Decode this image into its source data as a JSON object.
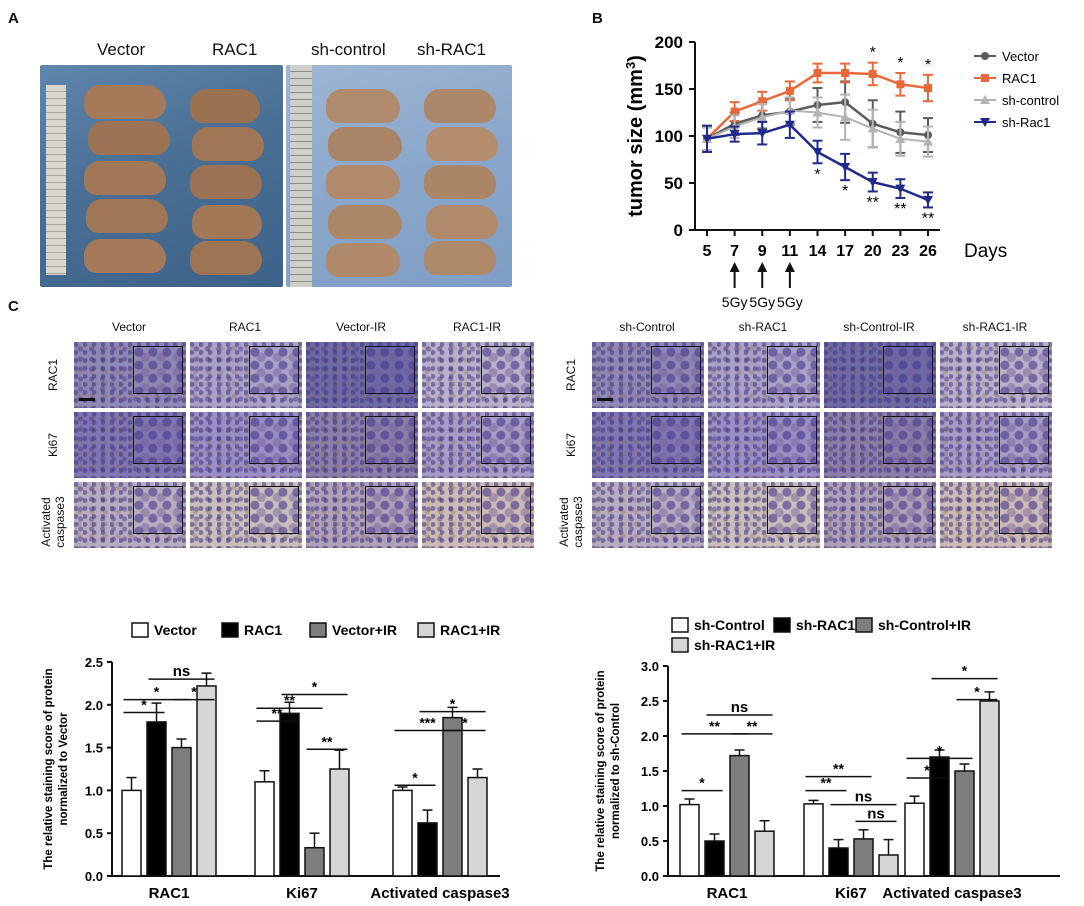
{
  "panels": {
    "a": "A",
    "b": "B",
    "c": "C"
  },
  "panel_a": {
    "group_labels": [
      "Vector",
      "RAC1",
      "sh-control",
      "sh-RAC1"
    ]
  },
  "panel_c": {
    "left_columns": [
      "Vector",
      "RAC1",
      "Vector-IR",
      "RAC1-IR"
    ],
    "right_columns": [
      "sh-Control",
      "sh-RAC1",
      "sh-Control-IR",
      "sh-RAC1-IR"
    ],
    "rows": [
      "RAC1",
      "Ki67",
      "Activated caspase3"
    ],
    "row_line1": [
      "RAC1",
      "Ki67",
      "Activated"
    ],
    "row_line2": [
      "",
      "",
      "caspase3"
    ]
  },
  "colors": {
    "vector": "#5b5b5b",
    "rac1": "#e8683a",
    "sh_control": "#b3b3b3",
    "sh_rac1": "#1f2a8c",
    "bar_white": "#ffffff",
    "bar_black": "#000000",
    "bar_dark": "#7d7d7d",
    "bar_light": "#d6d6d6"
  },
  "chart_data": [
    {
      "id": "tumor-growth",
      "type": "line",
      "ylabel": "tumor size (mm3)",
      "xlabel": "Days",
      "x": [
        5,
        7,
        9,
        11,
        14,
        17,
        20,
        23,
        26
      ],
      "ylim": [
        0,
        200
      ],
      "yticks": [
        0,
        50,
        100,
        150,
        200
      ],
      "series": [
        {
          "name": "Vector",
          "marker": "circle",
          "values": [
            97,
            113,
            122,
            126,
            133,
            136,
            113,
            104,
            101
          ],
          "errors": [
            12,
            12,
            14,
            14,
            18,
            22,
            25,
            22,
            18
          ]
        },
        {
          "name": "RAC1",
          "marker": "square",
          "values": [
            97,
            126,
            137,
            148,
            167,
            167,
            166,
            155,
            151
          ],
          "errors": [
            12,
            10,
            10,
            10,
            10,
            10,
            12,
            12,
            14
          ]
        },
        {
          "name": "sh-control",
          "marker": "triangle-up",
          "values": [
            97,
            110,
            120,
            127,
            125,
            120,
            108,
            97,
            94
          ],
          "errors": [
            12,
            12,
            14,
            14,
            16,
            24,
            20,
            18,
            16
          ]
        },
        {
          "name": "sh-Rac1",
          "marker": "triangle-down",
          "values": [
            97,
            102,
            103,
            112,
            83,
            67,
            51,
            44,
            32
          ],
          "errors": [
            14,
            8,
            12,
            14,
            12,
            14,
            10,
            10,
            8
          ]
        }
      ],
      "annotations": [
        {
          "day": 20,
          "text": "*",
          "at": "above"
        },
        {
          "day": 23,
          "text": "*",
          "at": "above"
        },
        {
          "day": 26,
          "text": "*",
          "at": "above"
        },
        {
          "day": 14,
          "text": "*",
          "at": "below"
        },
        {
          "day": 17,
          "text": "*",
          "at": "below"
        },
        {
          "day": 20,
          "text": "**",
          "at": "below"
        },
        {
          "day": 23,
          "text": "**",
          "at": "below"
        },
        {
          "day": 26,
          "text": "**",
          "at": "below"
        }
      ],
      "radiation": [
        {
          "day": 7,
          "label": "5Gy"
        },
        {
          "day": 9,
          "label": "5Gy"
        },
        {
          "day": 11,
          "label": "5Gy"
        }
      ]
    },
    {
      "id": "staining-left",
      "type": "bar",
      "ylabel_line1": "The relative staining score of protein",
      "ylabel_line2": "normalized to Vector",
      "categories": [
        "RAC1",
        "Ki67",
        "Activated caspase3"
      ],
      "ylim": [
        0,
        2.5
      ],
      "yticks": [
        "0.0",
        "0.5",
        "1.0",
        "1.5",
        "2.0",
        "2.5"
      ],
      "series": [
        {
          "name": "Vector",
          "values": [
            1.0,
            1.1,
            1.0
          ],
          "errors": [
            0.15,
            0.13,
            0.04
          ]
        },
        {
          "name": "RAC1",
          "values": [
            1.8,
            1.9,
            0.62
          ],
          "errors": [
            0.22,
            0.13,
            0.15
          ]
        },
        {
          "name": "Vector+IR",
          "values": [
            1.5,
            0.33,
            1.85
          ],
          "errors": [
            0.1,
            0.17,
            0.12
          ]
        },
        {
          "name": "RAC1+IR",
          "values": [
            2.22,
            1.25,
            1.15
          ],
          "errors": [
            0.15,
            0.22,
            0.1
          ]
        }
      ],
      "significance": [
        {
          "cat": 0,
          "from": 0,
          "to": 1,
          "level": 1.91,
          "text": "*"
        },
        {
          "cat": 0,
          "from": 0,
          "to": 2,
          "level": 2.06,
          "text": "*"
        },
        {
          "cat": 0,
          "from": 2,
          "to": 3,
          "level": 2.06,
          "text": "*"
        },
        {
          "cat": 0,
          "from": 1,
          "to": 3,
          "level": 2.3,
          "text": "ns"
        },
        {
          "cat": 1,
          "from": 0,
          "to": 1,
          "level": 1.81,
          "text": "**"
        },
        {
          "cat": 1,
          "from": 0,
          "to": 2,
          "level": 1.96,
          "text": "**"
        },
        {
          "cat": 1,
          "from": 1,
          "to": 3,
          "level": 2.12,
          "text": "*"
        },
        {
          "cat": 1,
          "from": 2,
          "to": 3,
          "level": 1.48,
          "text": "**"
        },
        {
          "cat": 2,
          "from": 0,
          "to": 1,
          "level": 1.06,
          "text": "*"
        },
        {
          "cat": 2,
          "from": 0,
          "to": 2,
          "level": 1.7,
          "text": "***"
        },
        {
          "cat": 2,
          "from": 1,
          "to": 3,
          "level": 1.92,
          "text": "*"
        },
        {
          "cat": 2,
          "from": 2,
          "to": 3,
          "level": 1.7,
          "text": "*"
        }
      ]
    },
    {
      "id": "staining-right",
      "type": "bar",
      "ylabel_line1": "The relative staining score of protein",
      "ylabel_line2": "normalized to sh-Control",
      "categories": [
        "RAC1",
        "Ki67",
        "Activated caspase3"
      ],
      "ylim": [
        0,
        3.0
      ],
      "yticks": [
        "0.0",
        "0.5",
        "1.0",
        "1.5",
        "2.0",
        "2.5",
        "3.0"
      ],
      "series": [
        {
          "name": "sh-Control",
          "values": [
            1.02,
            1.03,
            1.04
          ],
          "errors": [
            0.08,
            0.05,
            0.1
          ]
        },
        {
          "name": "sh-RAC1",
          "values": [
            0.5,
            0.4,
            1.7
          ],
          "errors": [
            0.1,
            0.12,
            0.1
          ]
        },
        {
          "name": "sh-Control+IR",
          "values": [
            1.72,
            0.53,
            1.5
          ],
          "errors": [
            0.08,
            0.13,
            0.1
          ]
        },
        {
          "name": "sh-RAC1+IR",
          "values": [
            0.64,
            0.3,
            2.5
          ],
          "errors": [
            0.15,
            0.22,
            0.13
          ]
        }
      ],
      "significance": [
        {
          "cat": 0,
          "from": 0,
          "to": 1,
          "level": 1.22,
          "text": "*"
        },
        {
          "cat": 0,
          "from": 0,
          "to": 2,
          "level": 2.03,
          "text": "**"
        },
        {
          "cat": 0,
          "from": 1,
          "to": 3,
          "level": 2.3,
          "text": "ns"
        },
        {
          "cat": 0,
          "from": 2,
          "to": 3,
          "level": 2.03,
          "text": "**"
        },
        {
          "cat": 1,
          "from": 0,
          "to": 1,
          "level": 1.22,
          "text": "**"
        },
        {
          "cat": 1,
          "from": 0,
          "to": 2,
          "level": 1.42,
          "text": "**"
        },
        {
          "cat": 1,
          "from": 1,
          "to": 3,
          "level": 1.02,
          "text": "ns"
        },
        {
          "cat": 1,
          "from": 2,
          "to": 3,
          "level": 0.78,
          "text": "ns"
        },
        {
          "cat": 2,
          "from": 0,
          "to": 1,
          "level": 1.4,
          "text": "*"
        },
        {
          "cat": 2,
          "from": 0,
          "to": 2,
          "level": 1.68,
          "text": "*"
        },
        {
          "cat": 2,
          "from": 1,
          "to": 3,
          "level": 2.82,
          "text": "*"
        },
        {
          "cat": 2,
          "from": 2,
          "to": 3,
          "level": 2.52,
          "text": "*"
        }
      ]
    }
  ]
}
